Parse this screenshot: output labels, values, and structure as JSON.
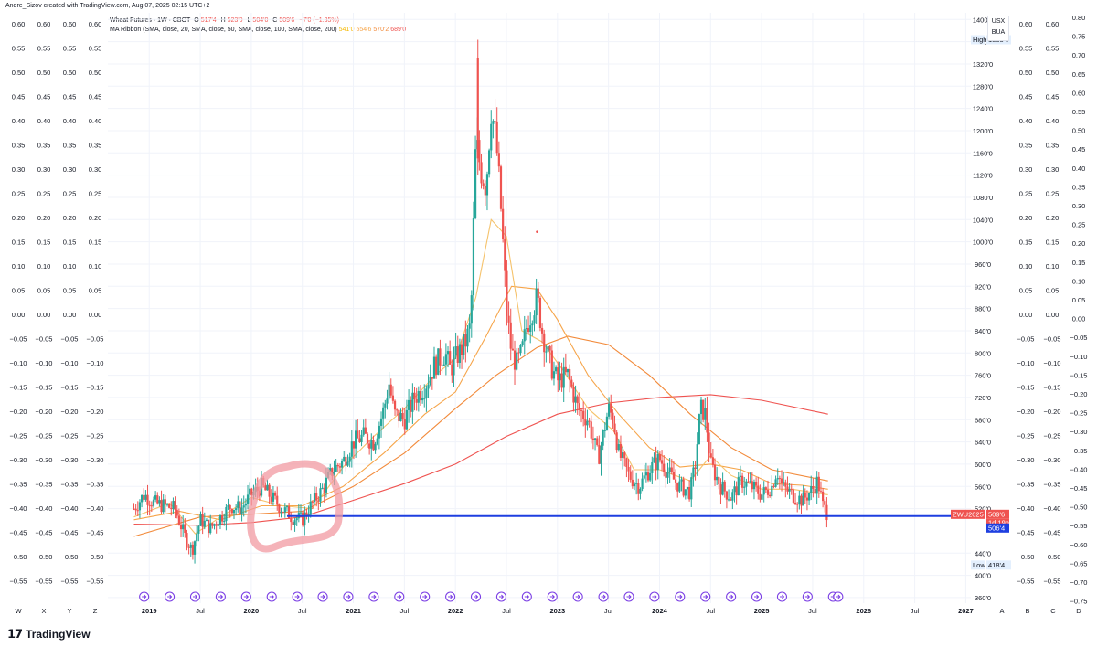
{
  "top_credit": "Andre_Sizov created with TradingView.com, Aug 07, 2025 02:15 UTC+2",
  "legend": {
    "symbol": "Wheat Futures · 1W · CBOT",
    "o_label": "O",
    "o": "517'4",
    "h_label": "H",
    "h": "523'0",
    "l_label": "L",
    "l": "504'0",
    "c_label": "C",
    "c": "509'6",
    "change": "−7'0 (−1.35%)",
    "ribbon_title": "MA Ribbon (SMA, close, 20, SMA, close, 50, SMA, close, 100, SMA, close, 200)",
    "ribbon_values": [
      "541'0",
      "554'6",
      "570'2",
      "689'0"
    ]
  },
  "currency_box": {
    "line1": "USX",
    "line2": "BUA"
  },
  "brand": "TradingView",
  "colors": {
    "up": "#26a69a",
    "down": "#ef5350",
    "ma20": "#f5c26b",
    "ma50": "#f6a54a",
    "ma100": "#f28a3a",
    "ma200": "#ef5350",
    "support": "#1e3fe0",
    "highlight": "#f29aa2",
    "event": "#7b3fe4"
  },
  "chart_data": {
    "type": "candlestick",
    "title": "Wheat Futures · 1W · CBOT",
    "price_axis": {
      "ticks": [
        "1400'0",
        "1360'0",
        "1320'0",
        "1280'0",
        "1240'0",
        "1200'0",
        "1160'0",
        "1120'0",
        "1080'0",
        "1040'0",
        "1000'0",
        "960'0",
        "920'0",
        "880'0",
        "840'0",
        "800'0",
        "760'0",
        "720'0",
        "680'0",
        "640'0",
        "600'0",
        "560'0",
        "520'0",
        "440'0",
        "400'0",
        "360'0"
      ],
      "range": [
        350,
        1412
      ]
    },
    "time_axis": {
      "labels": [
        "2019",
        "Jul",
        "2020",
        "Jul",
        "2021",
        "Jul",
        "2022",
        "Jul",
        "2023",
        "Jul",
        "2024",
        "Jul",
        "2025",
        "Jul",
        "2026",
        "Jul",
        "2027"
      ],
      "bold": [
        true,
        false,
        true,
        false,
        true,
        false,
        true,
        false,
        true,
        false,
        true,
        false,
        true,
        false,
        true,
        false,
        true
      ],
      "side_letters_left": [
        "W",
        "X",
        "Y",
        "Z"
      ],
      "side_letters_right": [
        "A",
        "B",
        "C",
        "D"
      ]
    },
    "side_scale_left": [
      "0.60",
      "0.55",
      "0.50",
      "0.45",
      "0.40",
      "0.35",
      "0.30",
      "0.25",
      "0.20",
      "0.15",
      "0.10",
      "0.05",
      "0.00",
      "−0.05",
      "−0.10",
      "−0.15",
      "−0.20",
      "−0.25",
      "−0.30",
      "−0.35",
      "−0.40",
      "−0.45",
      "−0.50",
      "−0.55"
    ],
    "side_scale_right_a": [
      "0.60",
      "0.55",
      "0.50",
      "0.45",
      "0.40",
      "0.35",
      "0.30",
      "0.25",
      "0.20",
      "0.15",
      "0.10",
      "0.05",
      "0.00",
      "−0.05",
      "−0.10",
      "−0.15",
      "−0.20",
      "−0.25",
      "−0.30",
      "−0.35",
      "−0.40",
      "−0.45",
      "−0.50",
      "−0.55"
    ],
    "side_scale_right_b": [
      "0.80",
      "0.75",
      "0.70",
      "0.65",
      "0.60",
      "0.55",
      "0.50",
      "0.45",
      "0.40",
      "0.35",
      "0.30",
      "0.25",
      "0.20",
      "0.15",
      "0.10",
      "0.05",
      "0.00",
      "−0.05",
      "−0.10",
      "−0.15",
      "−0.20",
      "−0.25",
      "−0.30",
      "−0.35",
      "−0.40",
      "−0.45",
      "−0.50",
      "−0.55",
      "−0.60",
      "−0.65",
      "−0.70",
      "−0.75"
    ],
    "markers": {
      "high_label": "High",
      "high_value": "1363'4",
      "low_label": "Low",
      "low_value": "418'4",
      "symbol_tag": "ZWU2025",
      "last_price": "509'6",
      "countdown": "1d 19h",
      "support_price_label": "506'4"
    },
    "support_line_price": 506.5,
    "highlight_circle": {
      "center_date": 2020.45,
      "center_price": 530
    },
    "price_path": [
      [
        2018.85,
        520
      ],
      [
        2018.95,
        545
      ],
      [
        2019.05,
        530
      ],
      [
        2019.15,
        525
      ],
      [
        2019.25,
        520
      ],
      [
        2019.35,
        470
      ],
      [
        2019.42,
        445
      ],
      [
        2019.5,
        500
      ],
      [
        2019.6,
        485
      ],
      [
        2019.7,
        505
      ],
      [
        2019.8,
        525
      ],
      [
        2019.9,
        520
      ],
      [
        2020.0,
        545
      ],
      [
        2020.1,
        560
      ],
      [
        2020.2,
        540
      ],
      [
        2020.3,
        520
      ],
      [
        2020.4,
        505
      ],
      [
        2020.5,
        500
      ],
      [
        2020.6,
        530
      ],
      [
        2020.7,
        555
      ],
      [
        2020.8,
        590
      ],
      [
        2020.9,
        605
      ],
      [
        2021.0,
        640
      ],
      [
        2021.1,
        650
      ],
      [
        2021.2,
        640
      ],
      [
        2021.3,
        700
      ],
      [
        2021.35,
        745
      ],
      [
        2021.4,
        690
      ],
      [
        2021.5,
        680
      ],
      [
        2021.6,
        720
      ],
      [
        2021.7,
        740
      ],
      [
        2021.8,
        780
      ],
      [
        2021.9,
        800
      ],
      [
        2021.95,
        770
      ],
      [
        2022.0,
        790
      ],
      [
        2022.1,
        820
      ],
      [
        2022.15,
        850
      ],
      [
        2022.2,
        1180
      ],
      [
        2022.25,
        1130
      ],
      [
        2022.3,
        1100
      ],
      [
        2022.35,
        1240
      ],
      [
        2022.4,
        1180
      ],
      [
        2022.45,
        1050
      ],
      [
        2022.5,
        880
      ],
      [
        2022.55,
        800
      ],
      [
        2022.6,
        780
      ],
      [
        2022.65,
        800
      ],
      [
        2022.7,
        850
      ],
      [
        2022.8,
        900
      ],
      [
        2022.85,
        840
      ],
      [
        2022.9,
        800
      ],
      [
        2022.95,
        770
      ],
      [
        2023.0,
        750
      ],
      [
        2023.1,
        760
      ],
      [
        2023.2,
        700
      ],
      [
        2023.3,
        680
      ],
      [
        2023.4,
        610
      ],
      [
        2023.5,
        700
      ],
      [
        2023.55,
        680
      ],
      [
        2023.6,
        620
      ],
      [
        2023.7,
        580
      ],
      [
        2023.8,
        560
      ],
      [
        2023.9,
        590
      ],
      [
        2024.0,
        610
      ],
      [
        2024.1,
        580
      ],
      [
        2024.2,
        560
      ],
      [
        2024.3,
        550
      ],
      [
        2024.35,
        600
      ],
      [
        2024.4,
        700
      ],
      [
        2024.45,
        690
      ],
      [
        2024.5,
        600
      ],
      [
        2024.6,
        560
      ],
      [
        2024.7,
        540
      ],
      [
        2024.8,
        570
      ],
      [
        2024.9,
        560
      ],
      [
        2025.0,
        545
      ],
      [
        2025.1,
        560
      ],
      [
        2025.15,
        590
      ],
      [
        2025.2,
        560
      ],
      [
        2025.3,
        545
      ],
      [
        2025.4,
        535
      ],
      [
        2025.5,
        555
      ],
      [
        2025.55,
        570
      ],
      [
        2025.6,
        525
      ],
      [
        2025.65,
        510
      ]
    ],
    "ma_ribbon": {
      "sma20": [
        [
          2018.85,
          505
        ],
        [
          2019.2,
          530
        ],
        [
          2019.45,
          475
        ],
        [
          2019.7,
          505
        ],
        [
          2020.0,
          540
        ],
        [
          2020.3,
          525
        ],
        [
          2020.6,
          520
        ],
        [
          2020.9,
          595
        ],
        [
          2021.2,
          650
        ],
        [
          2021.5,
          700
        ],
        [
          2021.8,
          760
        ],
        [
          2022.0,
          790
        ],
        [
          2022.2,
          900
        ],
        [
          2022.35,
          1040
        ],
        [
          2022.5,
          1010
        ],
        [
          2022.65,
          840
        ],
        [
          2022.85,
          820
        ],
        [
          2023.05,
          770
        ],
        [
          2023.3,
          700
        ],
        [
          2023.55,
          660
        ],
        [
          2023.75,
          590
        ],
        [
          2024.0,
          590
        ],
        [
          2024.3,
          570
        ],
        [
          2024.5,
          615
        ],
        [
          2024.7,
          580
        ],
        [
          2025.0,
          555
        ],
        [
          2025.3,
          555
        ],
        [
          2025.65,
          545
        ]
      ],
      "sma50": [
        [
          2018.85,
          500
        ],
        [
          2019.3,
          515
        ],
        [
          2019.7,
          500
        ],
        [
          2020.1,
          525
        ],
        [
          2020.5,
          525
        ],
        [
          2020.9,
          560
        ],
        [
          2021.3,
          620
        ],
        [
          2021.7,
          690
        ],
        [
          2022.0,
          730
        ],
        [
          2022.3,
          830
        ],
        [
          2022.55,
          920
        ],
        [
          2022.8,
          915
        ],
        [
          2023.0,
          860
        ],
        [
          2023.3,
          760
        ],
        [
          2023.6,
          690
        ],
        [
          2023.9,
          630
        ],
        [
          2024.2,
          595
        ],
        [
          2024.5,
          600
        ],
        [
          2024.8,
          590
        ],
        [
          2025.1,
          565
        ],
        [
          2025.4,
          562
        ],
        [
          2025.65,
          555
        ]
      ],
      "sma100": [
        [
          2018.85,
          470
        ],
        [
          2019.5,
          505
        ],
        [
          2020.0,
          510
        ],
        [
          2020.5,
          515
        ],
        [
          2021.0,
          560
        ],
        [
          2021.5,
          620
        ],
        [
          2022.0,
          700
        ],
        [
          2022.4,
          760
        ],
        [
          2022.8,
          810
        ],
        [
          2023.1,
          830
        ],
        [
          2023.5,
          815
        ],
        [
          2023.9,
          760
        ],
        [
          2024.3,
          690
        ],
        [
          2024.7,
          630
        ],
        [
          2025.1,
          590
        ],
        [
          2025.65,
          570
        ]
      ],
      "sma200": [
        [
          2018.85,
          492
        ],
        [
          2019.5,
          490
        ],
        [
          2020.0,
          495
        ],
        [
          2020.5,
          505
        ],
        [
          2021.0,
          535
        ],
        [
          2021.5,
          565
        ],
        [
          2022.0,
          600
        ],
        [
          2022.5,
          650
        ],
        [
          2023.0,
          690
        ],
        [
          2023.5,
          710
        ],
        [
          2024.0,
          720
        ],
        [
          2024.5,
          725
        ],
        [
          2025.0,
          715
        ],
        [
          2025.65,
          690
        ]
      ]
    },
    "event_markers_dates": [
      2018.95,
      2019.2,
      2019.45,
      2019.7,
      2019.95,
      2020.2,
      2020.45,
      2020.7,
      2020.95,
      2021.2,
      2021.45,
      2021.7,
      2021.95,
      2022.2,
      2022.45,
      2022.7,
      2022.95,
      2023.2,
      2023.45,
      2023.7,
      2023.95,
      2024.2,
      2024.45,
      2024.7,
      2024.95,
      2025.2,
      2025.45,
      2025.7,
      2025.75
    ]
  }
}
